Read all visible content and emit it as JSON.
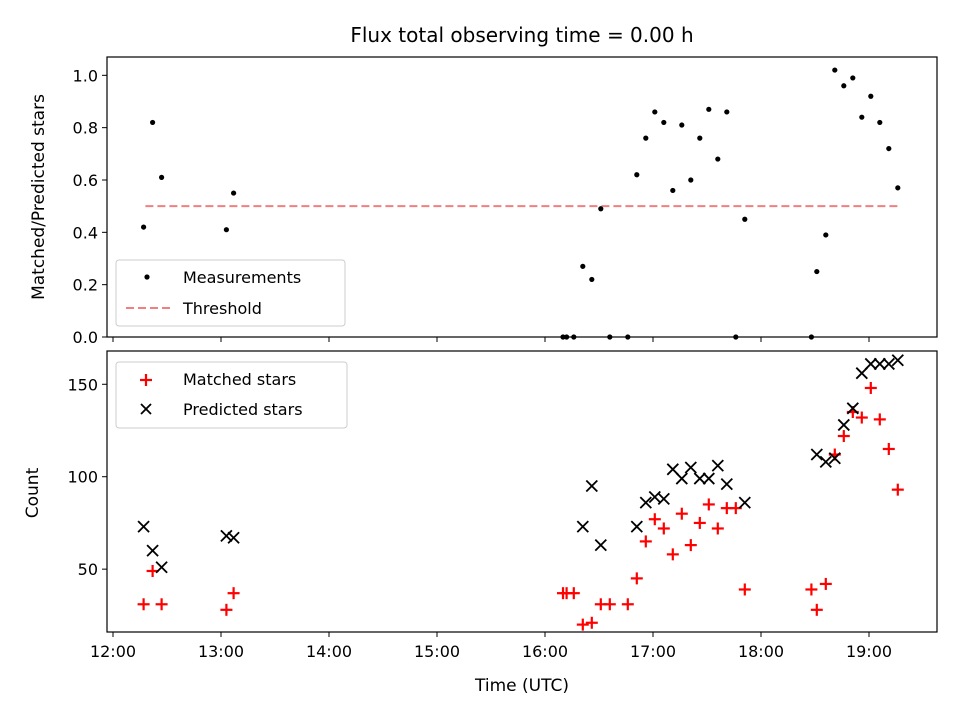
{
  "chart_data": {
    "title": "Flux total observing time = 0.00 h",
    "xlabel": "Time (UTC)",
    "x_ticks": [
      "12:00",
      "13:00",
      "14:00",
      "15:00",
      "16:00",
      "17:00",
      "18:00",
      "19:00"
    ],
    "top": {
      "type": "scatter",
      "ylabel": "Matched/Predicted stars",
      "ylim": [
        0,
        1.07
      ],
      "yticks": [
        "0.0",
        "0.2",
        "0.4",
        "0.6",
        "0.8",
        "1.0"
      ],
      "legend_position": "lower-left",
      "threshold": {
        "name": "Threshold",
        "value": 0.5,
        "x_range": [
          "12:18",
          "19:17"
        ],
        "color": "#f08080"
      },
      "measurements": {
        "name": "Measurements",
        "color": "#000000",
        "points": [
          [
            "12:17",
            0.42
          ],
          [
            "12:22",
            0.82
          ],
          [
            "12:27",
            0.61
          ],
          [
            "13:03",
            0.41
          ],
          [
            "13:07",
            0.55
          ],
          [
            "16:10",
            0.0
          ],
          [
            "16:12",
            0.0
          ],
          [
            "16:16",
            0.0
          ],
          [
            "16:21",
            0.27
          ],
          [
            "16:26",
            0.22
          ],
          [
            "16:31",
            0.49
          ],
          [
            "16:36",
            0.0
          ],
          [
            "16:46",
            0.0
          ],
          [
            "16:51",
            0.62
          ],
          [
            "16:56",
            0.76
          ],
          [
            "17:01",
            0.86
          ],
          [
            "17:06",
            0.82
          ],
          [
            "17:11",
            0.56
          ],
          [
            "17:16",
            0.81
          ],
          [
            "17:21",
            0.6
          ],
          [
            "17:26",
            0.76
          ],
          [
            "17:31",
            0.87
          ],
          [
            "17:36",
            0.68
          ],
          [
            "17:41",
            0.86
          ],
          [
            "17:46",
            0.0
          ],
          [
            "17:51",
            0.45
          ],
          [
            "18:28",
            0.0
          ],
          [
            "18:31",
            0.25
          ],
          [
            "18:36",
            0.39
          ],
          [
            "18:41",
            1.02
          ],
          [
            "18:46",
            0.96
          ],
          [
            "18:51",
            0.99
          ],
          [
            "18:56",
            0.84
          ],
          [
            "19:01",
            0.92
          ],
          [
            "19:06",
            0.82
          ],
          [
            "19:11",
            0.72
          ],
          [
            "19:16",
            0.57
          ]
        ]
      }
    },
    "bottom": {
      "type": "scatter",
      "ylabel": "Count",
      "ylim": [
        16,
        168
      ],
      "yticks": [
        "50",
        "100",
        "150"
      ],
      "legend_position": "upper-left",
      "series": [
        {
          "name": "Matched stars",
          "marker": "plus",
          "color": "#ff0000",
          "points": [
            [
              "12:17",
              31
            ],
            [
              "12:22",
              49
            ],
            [
              "12:27",
              31
            ],
            [
              "13:03",
              28
            ],
            [
              "13:07",
              37
            ],
            [
              "16:10",
              37
            ],
            [
              "16:12",
              37
            ],
            [
              "16:16",
              37
            ],
            [
              "16:21",
              20
            ],
            [
              "16:26",
              21
            ],
            [
              "16:31",
              31
            ],
            [
              "16:36",
              31
            ],
            [
              "16:46",
              31
            ],
            [
              "16:51",
              45
            ],
            [
              "16:56",
              65
            ],
            [
              "17:01",
              77
            ],
            [
              "17:06",
              72
            ],
            [
              "17:11",
              58
            ],
            [
              "17:16",
              80
            ],
            [
              "17:21",
              63
            ],
            [
              "17:26",
              75
            ],
            [
              "17:31",
              85
            ],
            [
              "17:36",
              72
            ],
            [
              "17:41",
              83
            ],
            [
              "17:46",
              83
            ],
            [
              "17:51",
              39
            ],
            [
              "18:28",
              39
            ],
            [
              "18:31",
              28
            ],
            [
              "18:36",
              42
            ],
            [
              "18:41",
              112
            ],
            [
              "18:46",
              122
            ],
            [
              "18:51",
              135
            ],
            [
              "18:56",
              132
            ],
            [
              "19:01",
              148
            ],
            [
              "19:06",
              131
            ],
            [
              "19:11",
              115
            ],
            [
              "19:16",
              93
            ]
          ]
        },
        {
          "name": "Predicted stars",
          "marker": "x",
          "color": "#000000",
          "points": [
            [
              "12:17",
              73
            ],
            [
              "12:22",
              60
            ],
            [
              "12:27",
              51
            ],
            [
              "13:03",
              68
            ],
            [
              "13:07",
              67
            ],
            [
              "16:21",
              73
            ],
            [
              "16:26",
              95
            ],
            [
              "16:31",
              63
            ],
            [
              "16:51",
              73
            ],
            [
              "16:56",
              86
            ],
            [
              "17:01",
              89
            ],
            [
              "17:06",
              88
            ],
            [
              "17:11",
              104
            ],
            [
              "17:16",
              99
            ],
            [
              "17:21",
              105
            ],
            [
              "17:26",
              99
            ],
            [
              "17:31",
              99
            ],
            [
              "17:36",
              106
            ],
            [
              "17:41",
              96
            ],
            [
              "17:51",
              86
            ],
            [
              "18:31",
              112
            ],
            [
              "18:36",
              108
            ],
            [
              "18:41",
              110
            ],
            [
              "18:46",
              128
            ],
            [
              "18:51",
              137
            ],
            [
              "18:56",
              156
            ],
            [
              "19:01",
              161
            ],
            [
              "19:06",
              161
            ],
            [
              "19:11",
              161
            ],
            [
              "19:16",
              163
            ]
          ]
        }
      ]
    }
  }
}
